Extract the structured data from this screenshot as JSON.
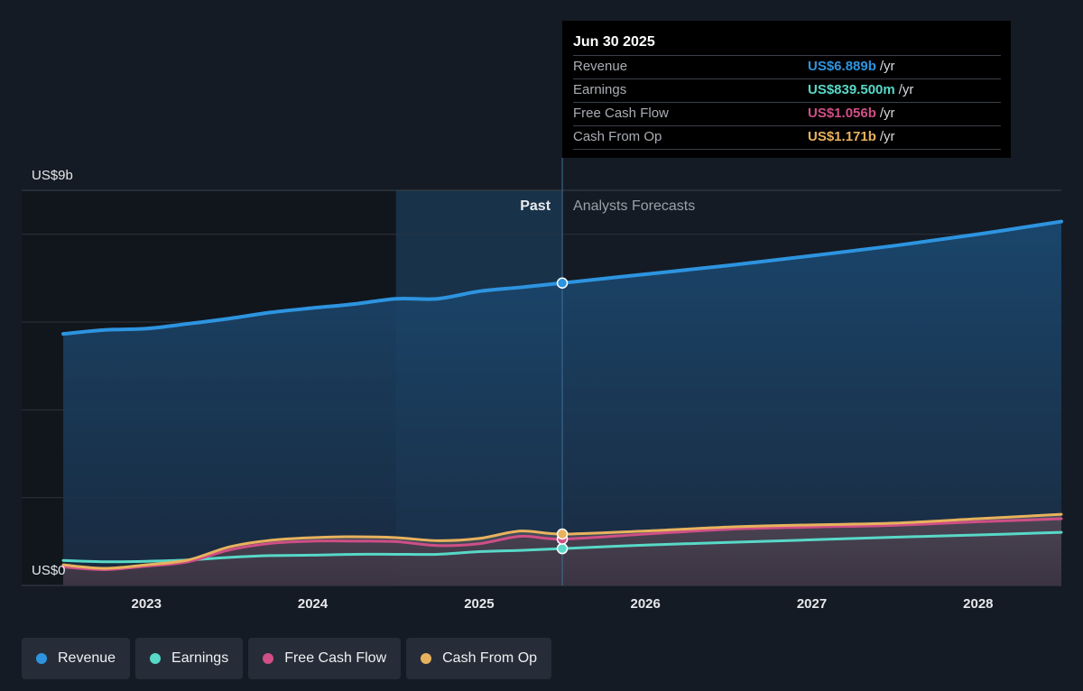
{
  "chart_data": {
    "type": "line",
    "y_label_top": "US$9b",
    "y_label_bottom": "US$0",
    "ylim": [
      0,
      9
    ],
    "x_ticks": [
      "2023",
      "2024",
      "2025",
      "2026",
      "2027",
      "2028"
    ],
    "x_tick_values": [
      2023.0,
      2024.0,
      2025.0,
      2026.0,
      2027.0,
      2028.0
    ],
    "xlim": [
      2022.25,
      2028.5
    ],
    "past_label": "Past",
    "forecast_label": "Analysts Forecasts",
    "divider_x": 2025.5,
    "highlight_start_x": 2024.5,
    "series": [
      {
        "name": "Revenue",
        "color": "#2d94e0",
        "x": [
          2022.5,
          2022.75,
          2023.0,
          2023.25,
          2023.5,
          2023.75,
          2024.0,
          2024.25,
          2024.5,
          2024.75,
          2025.0,
          2025.25,
          2025.5,
          2026.0,
          2026.5,
          2027.0,
          2027.5,
          2028.0,
          2028.5
        ],
        "y": [
          5.73,
          5.82,
          5.85,
          5.96,
          6.08,
          6.22,
          6.32,
          6.41,
          6.53,
          6.53,
          6.7,
          6.79,
          6.889,
          7.09,
          7.29,
          7.51,
          7.74,
          8.0,
          8.29
        ]
      },
      {
        "name": "Earnings",
        "color": "#58d8c7",
        "x": [
          2022.5,
          2022.75,
          2023.0,
          2023.25,
          2023.5,
          2023.75,
          2024.0,
          2024.25,
          2024.5,
          2024.75,
          2025.0,
          2025.25,
          2025.5,
          2026.0,
          2026.5,
          2027.0,
          2027.5,
          2028.0,
          2028.5
        ],
        "y": [
          0.57,
          0.54,
          0.55,
          0.58,
          0.64,
          0.68,
          0.69,
          0.71,
          0.71,
          0.71,
          0.77,
          0.8,
          0.8395,
          0.92,
          0.98,
          1.04,
          1.1,
          1.15,
          1.21
        ]
      },
      {
        "name": "Free Cash Flow",
        "color": "#cf4f86",
        "x": [
          2022.5,
          2022.75,
          2023.0,
          2023.25,
          2023.5,
          2023.75,
          2024.0,
          2024.25,
          2024.5,
          2024.75,
          2025.0,
          2025.25,
          2025.5,
          2026.0,
          2026.5,
          2027.0,
          2027.5,
          2028.0,
          2028.5
        ],
        "y": [
          0.42,
          0.36,
          0.44,
          0.54,
          0.81,
          0.96,
          1.01,
          1.01,
          1.0,
          0.91,
          0.95,
          1.12,
          1.056,
          1.17,
          1.28,
          1.33,
          1.37,
          1.45,
          1.52
        ]
      },
      {
        "name": "Cash From Op",
        "color": "#e8b25d",
        "x": [
          2022.5,
          2022.75,
          2023.0,
          2023.25,
          2023.5,
          2023.75,
          2024.0,
          2024.25,
          2024.5,
          2024.75,
          2025.0,
          2025.25,
          2025.5,
          2026.0,
          2026.5,
          2027.0,
          2027.5,
          2028.0,
          2028.5
        ],
        "y": [
          0.47,
          0.39,
          0.47,
          0.58,
          0.88,
          1.03,
          1.09,
          1.11,
          1.09,
          1.02,
          1.07,
          1.24,
          1.171,
          1.24,
          1.33,
          1.38,
          1.42,
          1.52,
          1.62
        ]
      }
    ],
    "tooltip": {
      "date": "Jun 30 2025",
      "rows": [
        {
          "label": "Revenue",
          "value": "US$6.889b",
          "unit": "/yr",
          "color": "#2d94e0"
        },
        {
          "label": "Earnings",
          "value": "US$839.500m",
          "unit": "/yr",
          "color": "#58d8c7"
        },
        {
          "label": "Free Cash Flow",
          "value": "US$1.056b",
          "unit": "/yr",
          "color": "#cf4f86"
        },
        {
          "label": "Cash From Op",
          "value": "US$1.171b",
          "unit": "/yr",
          "color": "#e8b25d"
        }
      ]
    }
  },
  "legend": [
    {
      "label": "Revenue",
      "color": "#2d94e0"
    },
    {
      "label": "Earnings",
      "color": "#58d8c7"
    },
    {
      "label": "Free Cash Flow",
      "color": "#cf4f86"
    },
    {
      "label": "Cash From Op",
      "color": "#e8b25d"
    }
  ]
}
